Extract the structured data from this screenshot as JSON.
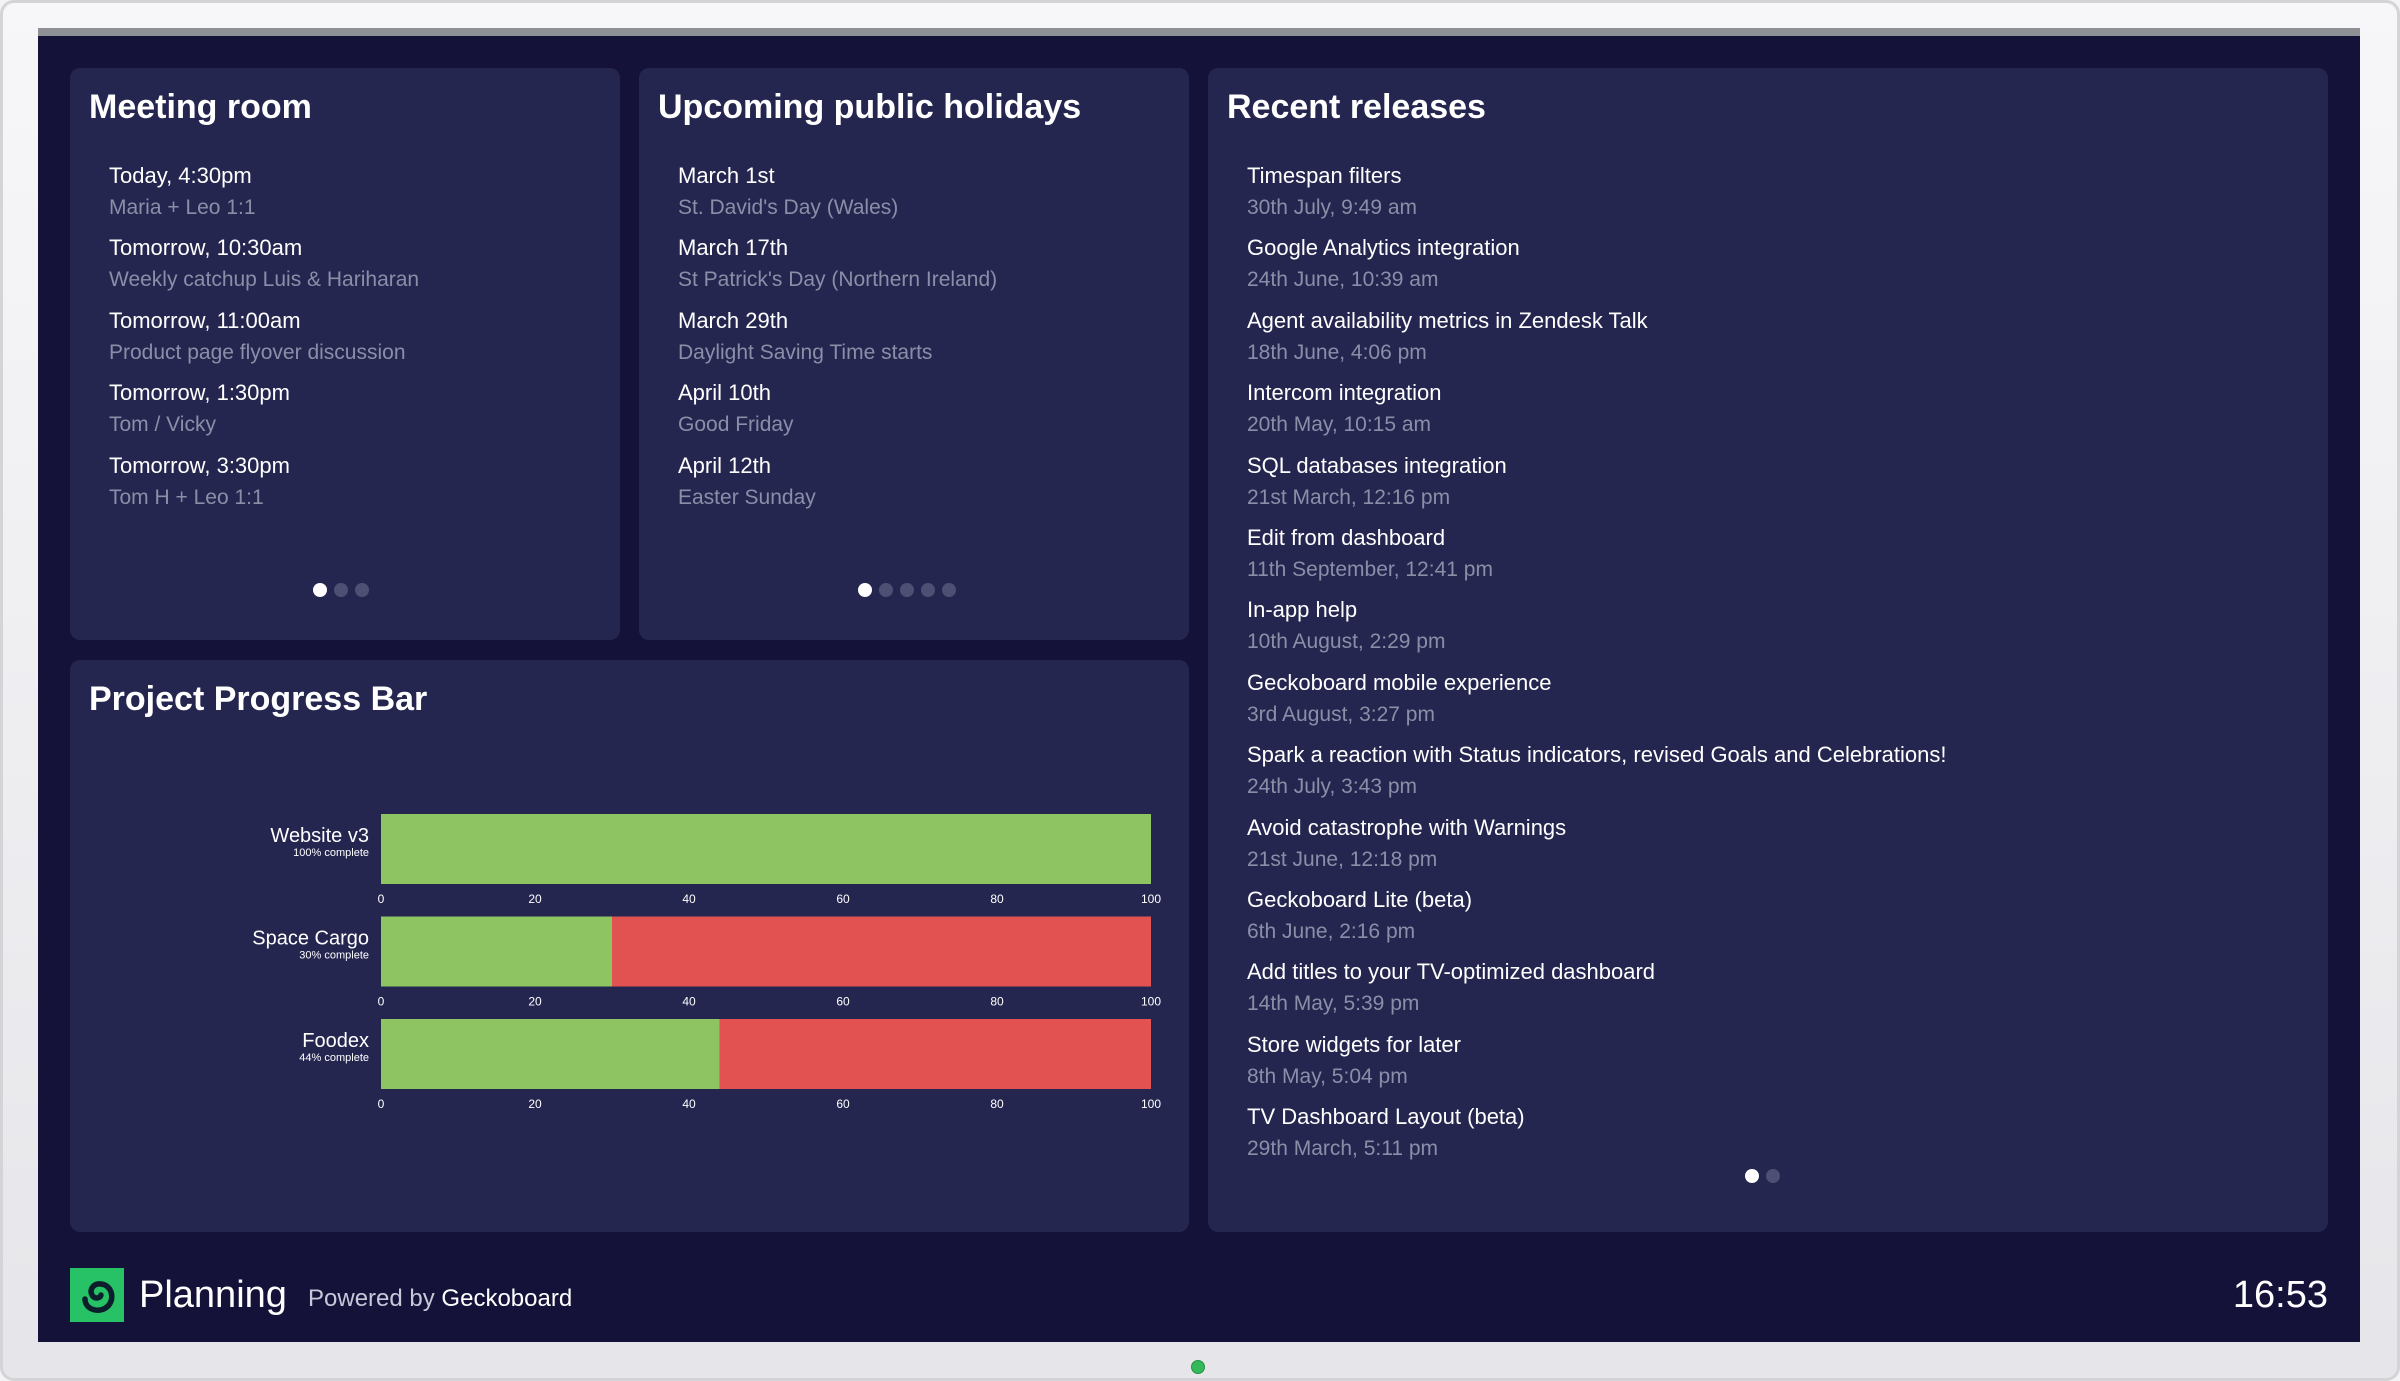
{
  "meeting_room": {
    "title": "Meeting room",
    "items": [
      {
        "time": "Today, 4:30pm",
        "desc": "Maria + Leo 1:1"
      },
      {
        "time": "Tomorrow, 10:30am",
        "desc": "Weekly catchup Luis & Hariharan"
      },
      {
        "time": "Tomorrow, 11:00am",
        "desc": "Product page flyover discussion"
      },
      {
        "time": "Tomorrow, 1:30pm",
        "desc": "Tom / Vicky"
      },
      {
        "time": "Tomorrow, 3:30pm",
        "desc": "Tom H + Leo 1:1"
      }
    ],
    "pages": 3,
    "active_page": 1
  },
  "holidays": {
    "title": "Upcoming public holidays",
    "items": [
      {
        "date": "March 1st",
        "name": "St. David's Day (Wales)"
      },
      {
        "date": "March 17th",
        "name": "St Patrick's Day (Northern Ireland)"
      },
      {
        "date": "March 29th",
        "name": "Daylight Saving Time starts"
      },
      {
        "date": "April 10th",
        "name": "Good Friday"
      },
      {
        "date": "April 12th",
        "name": "Easter Sunday"
      }
    ],
    "pages": 5,
    "active_page": 1
  },
  "releases": {
    "title": "Recent releases",
    "items": [
      {
        "name": "Timespan filters",
        "date": "30th July, 9:49 am"
      },
      {
        "name": "Google Analytics integration",
        "date": "24th June, 10:39 am"
      },
      {
        "name": "Agent availability metrics in Zendesk Talk",
        "date": "18th June, 4:06 pm"
      },
      {
        "name": "Intercom integration",
        "date": "20th May, 10:15 am"
      },
      {
        "name": "SQL databases integration",
        "date": "21st March, 12:16 pm"
      },
      {
        "name": "Edit from dashboard",
        "date": "11th September, 12:41 pm"
      },
      {
        "name": "In-app help",
        "date": "10th August, 2:29 pm"
      },
      {
        "name": "Geckoboard mobile experience",
        "date": "3rd August, 3:27 pm"
      },
      {
        "name": "Spark a reaction with Status indicators, revised Goals and Celebrations!",
        "date": "24th July, 3:43 pm"
      },
      {
        "name": "Avoid catastrophe with Warnings",
        "date": "21st June, 12:18 pm"
      },
      {
        "name": "Geckoboard Lite (beta)",
        "date": "6th June, 2:16 pm"
      },
      {
        "name": "Add titles to your TV-optimized dashboard",
        "date": "14th May, 5:39 pm"
      },
      {
        "name": "Store widgets for later",
        "date": "8th May, 5:04 pm"
      },
      {
        "name": "TV Dashboard Layout (beta)",
        "date": "29th March, 5:11 pm"
      }
    ],
    "pages": 2,
    "active_page": 1
  },
  "progress": {
    "title": "Project Progress Bar"
  },
  "chart_data": {
    "type": "bar",
    "orientation": "horizontal",
    "stacked": true,
    "categories": [
      "Website v3",
      "Space Cargo",
      "Foodex"
    ],
    "sublabels": [
      "100% complete",
      "30% complete",
      "44% complete"
    ],
    "series": [
      {
        "values": [
          100,
          30,
          44
        ],
        "color": "#8fc462"
      },
      {
        "values": [
          0,
          70,
          56
        ],
        "color": "#e15251"
      }
    ],
    "xlim": [
      0,
      100
    ],
    "ticks": [
      "0",
      "20",
      "40",
      "60",
      "80",
      "100"
    ],
    "tick_values": [
      0,
      20,
      40,
      60,
      80,
      100
    ]
  },
  "footer": {
    "title": "Planning",
    "powered_prefix": "Powered by",
    "powered_brand": "Geckoboard",
    "clock": "16:53",
    "logo_icon": "geckoboard-logo-icon",
    "logo_color": "#27c166"
  }
}
